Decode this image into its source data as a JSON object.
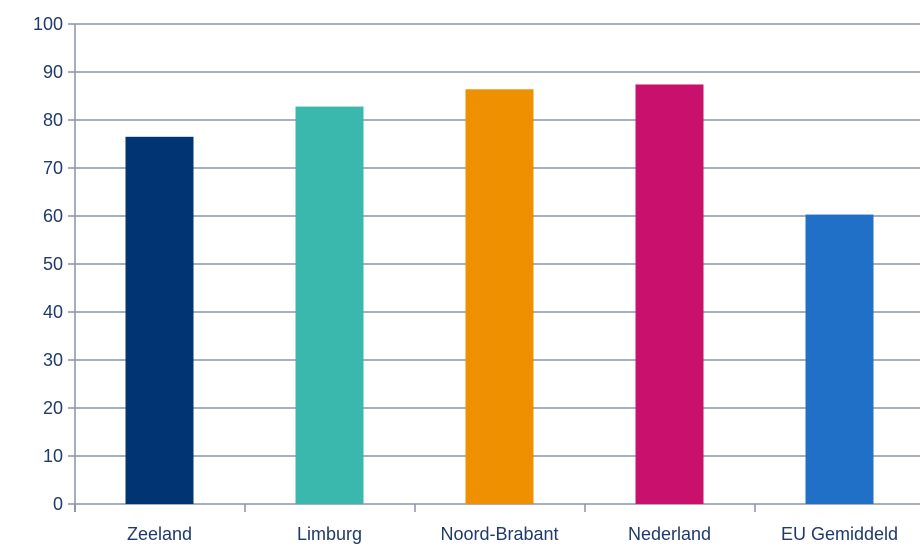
{
  "chart_data": {
    "type": "bar",
    "categories": [
      "Zeeland",
      "Limburg",
      "Noord-Brabant",
      "Nederland",
      "EU Gemiddeld"
    ],
    "values": [
      76.5,
      82.8,
      86.4,
      87.4,
      60.3
    ],
    "colors": [
      "#003473",
      "#3ab8ad",
      "#ef9000",
      "#c8106c",
      "#2070c8"
    ],
    "ylim": [
      0,
      100
    ],
    "yticks": [
      0,
      10,
      20,
      30,
      40,
      50,
      60,
      70,
      80,
      90,
      100
    ],
    "grid": true,
    "gridColor": "#8a94a6",
    "labelColor": "#1f3a6b"
  }
}
